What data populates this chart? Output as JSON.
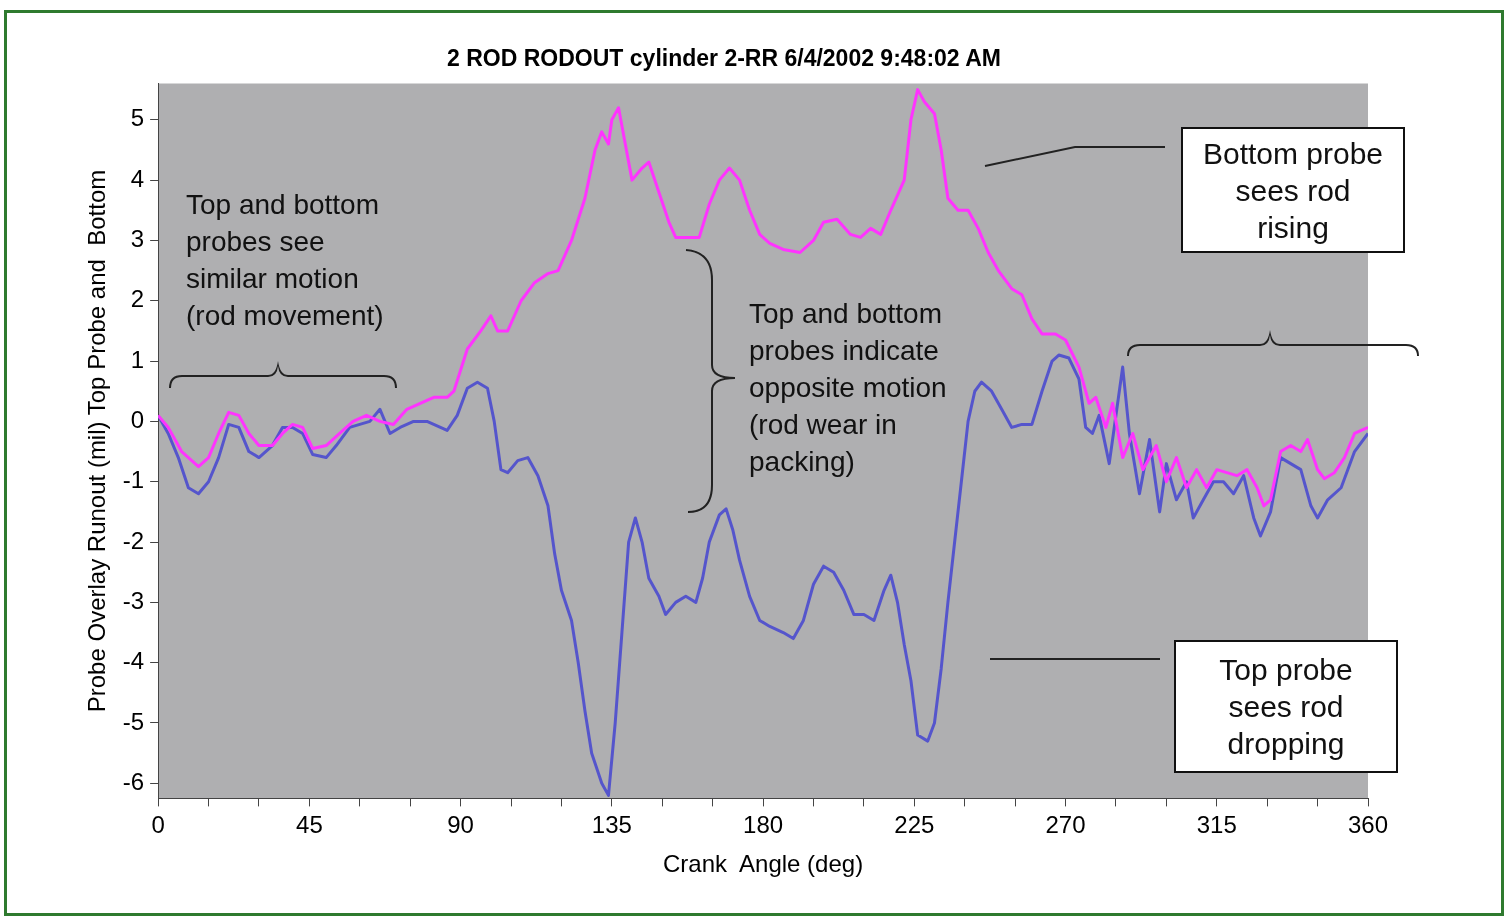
{
  "chart_data": {
    "type": "line",
    "title": "2 ROD RODOUT cylinder 2-RR 6/4/2002 9:48:02 AM",
    "xlabel": "Crank  Angle (deg)",
    "ylabel": "Probe Overlay Runout (mil) Top Probe and  Bottom",
    "xlim": [
      0,
      360
    ],
    "xticks": [
      0,
      {
        "value": 15,
        "label": null
      },
      {
        "value": 30,
        "label": null
      },
      45,
      {
        "value": 60,
        "label": null
      },
      {
        "value": 75,
        "label": null
      },
      90,
      {
        "value": 105,
        "label": null
      },
      {
        "value": 120,
        "label": null
      },
      135,
      {
        "value": 150,
        "label": null
      },
      {
        "value": 165,
        "label": null
      },
      180,
      {
        "value": 195,
        "label": null
      },
      {
        "value": 210,
        "label": null
      },
      225,
      {
        "value": 240,
        "label": null
      },
      {
        "value": 255,
        "label": null
      },
      270,
      {
        "value": 285,
        "label": null
      },
      {
        "value": 300,
        "label": null
      },
      315,
      {
        "value": 330,
        "label": null
      },
      {
        "value": 345,
        "label": null
      },
      360
    ],
    "ylim": [
      -6.25,
      5.6
    ],
    "yticks": [
      -6,
      -5,
      -4,
      -3,
      -2,
      -1,
      0,
      1,
      2,
      3,
      4,
      5
    ],
    "legend": false,
    "marker": "none",
    "line_style": "solid",
    "series": [
      {
        "color": "#ff33ff",
        "x": [
          0,
          3,
          7,
          12,
          15,
          18,
          21,
          24,
          27,
          30,
          34,
          37,
          40,
          43,
          46,
          50,
          54,
          58,
          62,
          66,
          70,
          74,
          78,
          82,
          86,
          88,
          92,
          96,
          99,
          101,
          104,
          108,
          112,
          116,
          119,
          123,
          127,
          130,
          132,
          134,
          135,
          137,
          139,
          141,
          144,
          146,
          149,
          152,
          154,
          158,
          161,
          164,
          167,
          170,
          173,
          176,
          179,
          182,
          186,
          191,
          195,
          198,
          202,
          206,
          209,
          212,
          215,
          218,
          222,
          224,
          226,
          228,
          231,
          233,
          235,
          238,
          241,
          244,
          247,
          250,
          254,
          257,
          260,
          263,
          267,
          270,
          274,
          277,
          279,
          282,
          284,
          287,
          290,
          293,
          297,
          300,
          303,
          306,
          309,
          312,
          315,
          318,
          321,
          324,
          327,
          329,
          331,
          334,
          337,
          340,
          342,
          345,
          347,
          350,
          353,
          356,
          360
        ],
        "values": [
          0.1,
          -0.1,
          -0.5,
          -0.75,
          -0.6,
          -0.2,
          0.15,
          0.1,
          -0.2,
          -0.4,
          -0.4,
          -0.2,
          -0.05,
          -0.1,
          -0.45,
          -0.4,
          -0.2,
          0.0,
          0.1,
          0.0,
          -0.05,
          0.2,
          0.3,
          0.4,
          0.4,
          0.5,
          1.2,
          1.5,
          1.75,
          1.5,
          1.5,
          2.0,
          2.3,
          2.45,
          2.5,
          3.0,
          3.7,
          4.5,
          4.8,
          4.6,
          5.0,
          5.2,
          4.6,
          4.0,
          4.2,
          4.3,
          3.8,
          3.3,
          3.05,
          3.05,
          3.05,
          3.6,
          4.0,
          4.2,
          4.0,
          3.5,
          3.1,
          2.95,
          2.85,
          2.8,
          3.0,
          3.3,
          3.35,
          3.1,
          3.05,
          3.2,
          3.1,
          3.5,
          4.0,
          5.0,
          5.5,
          5.3,
          5.1,
          4.5,
          3.7,
          3.5,
          3.5,
          3.2,
          2.8,
          2.5,
          2.2,
          2.1,
          1.7,
          1.45,
          1.45,
          1.35,
          0.9,
          0.3,
          0.4,
          -0.1,
          0.3,
          -0.6,
          -0.2,
          -0.8,
          -0.4,
          -1.0,
          -0.6,
          -1.1,
          -0.8,
          -1.1,
          -0.8,
          -0.85,
          -0.9,
          -0.8,
          -1.1,
          -1.4,
          -1.3,
          -0.5,
          -0.4,
          -0.5,
          -0.3,
          -0.8,
          -0.95,
          -0.85,
          -0.6,
          -0.2,
          -0.1
        ]
      },
      {
        "color": "#5555cc",
        "x": [
          0,
          3,
          6,
          9,
          12,
          15,
          18,
          21,
          24,
          27,
          30,
          34,
          37,
          40,
          43,
          46,
          50,
          53,
          57,
          60,
          63,
          66,
          69,
          72,
          76,
          80,
          84,
          86,
          89,
          92,
          95,
          98,
          100,
          102,
          104,
          107,
          110,
          113,
          116,
          118,
          120,
          123,
          125,
          127,
          129,
          132,
          134,
          136,
          138,
          140,
          142,
          144,
          146,
          149,
          151,
          154,
          157,
          160,
          162,
          164,
          167,
          169,
          171,
          173,
          176,
          179,
          182,
          186,
          189,
          192,
          195,
          198,
          201,
          204,
          207,
          210,
          213,
          216,
          218,
          220,
          222,
          224,
          226,
          229,
          231,
          233,
          235,
          237,
          239,
          241,
          243,
          245,
          248,
          251,
          254,
          257,
          260,
          263,
          266,
          268,
          271,
          274,
          276,
          278,
          280,
          283,
          286,
          287,
          289,
          292,
          295,
          298,
          300,
          303,
          306,
          308,
          311,
          314,
          317,
          320,
          323,
          326,
          328,
          331,
          334,
          337,
          340,
          343,
          345,
          348,
          352,
          356,
          360
        ],
        "values": [
          0.1,
          -0.2,
          -0.6,
          -1.1,
          -1.2,
          -1.0,
          -0.6,
          -0.05,
          -0.1,
          -0.5,
          -0.6,
          -0.4,
          -0.1,
          -0.1,
          -0.2,
          -0.55,
          -0.6,
          -0.4,
          -0.1,
          -0.05,
          0.0,
          0.2,
          -0.2,
          -0.1,
          0.0,
          0.0,
          -0.1,
          -0.15,
          0.1,
          0.55,
          0.65,
          0.55,
          0.0,
          -0.8,
          -0.85,
          -0.65,
          -0.6,
          -0.9,
          -1.4,
          -2.2,
          -2.8,
          -3.3,
          -4.0,
          -4.8,
          -5.5,
          -6.0,
          -6.2,
          -5.0,
          -3.5,
          -2.0,
          -1.6,
          -2.0,
          -2.6,
          -2.9,
          -3.2,
          -3.0,
          -2.9,
          -3.0,
          -2.6,
          -2.0,
          -1.55,
          -1.45,
          -1.8,
          -2.3,
          -2.9,
          -3.3,
          -3.4,
          -3.5,
          -3.6,
          -3.3,
          -2.7,
          -2.4,
          -2.5,
          -2.8,
          -3.2,
          -3.2,
          -3.3,
          -2.8,
          -2.55,
          -3.0,
          -3.7,
          -4.3,
          -5.2,
          -5.3,
          -5.0,
          -4.1,
          -3.0,
          -2.0,
          -1.0,
          0.0,
          0.5,
          0.65,
          0.5,
          0.2,
          -0.1,
          -0.05,
          -0.05,
          0.5,
          1.0,
          1.1,
          1.05,
          0.7,
          -0.1,
          -0.2,
          0.1,
          -0.7,
          0.5,
          0.9,
          -0.2,
          -1.2,
          -0.3,
          -1.5,
          -0.7,
          -1.3,
          -1.0,
          -1.6,
          -1.3,
          -1.0,
          -1.0,
          -1.2,
          -0.9,
          -1.6,
          -1.9,
          -1.5,
          -0.6,
          -0.7,
          -0.8,
          -1.4,
          -1.6,
          -1.3,
          -1.1,
          -0.5,
          -0.2
        ]
      }
    ],
    "annotations": [
      "Top and bottom probes see similar motion (rod movement)",
      "Top and bottom probes indicate opposite motion (rod wear in packing)",
      "Bottom probe sees rod rising",
      "Top probe sees rod dropping"
    ]
  }
}
